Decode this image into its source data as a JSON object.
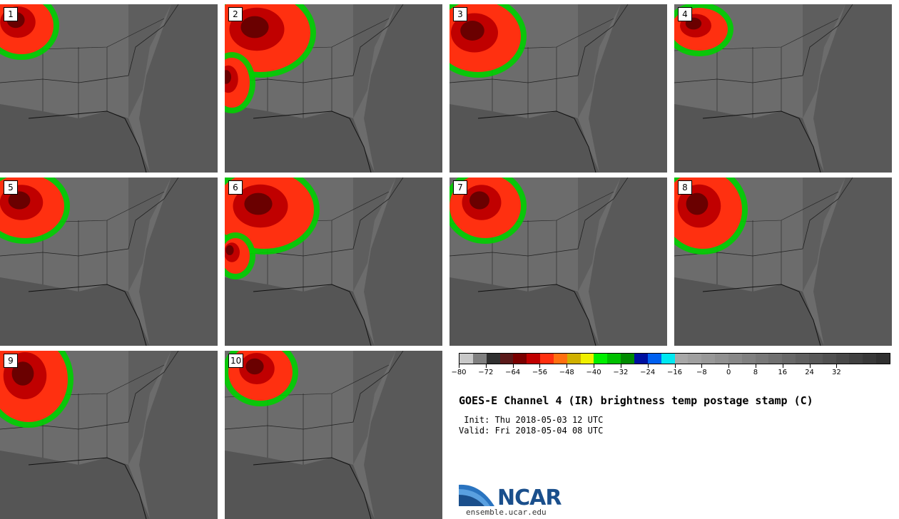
{
  "stamps": [
    {
      "label": "1"
    },
    {
      "label": "2"
    },
    {
      "label": "3"
    },
    {
      "label": "4"
    },
    {
      "label": "5"
    },
    {
      "label": "6"
    },
    {
      "label": "7"
    },
    {
      "label": "8"
    },
    {
      "label": "9"
    },
    {
      "label": "10"
    }
  ],
  "colorbar": {
    "colors": [
      "#c8c8c8",
      "#808080",
      "#303030",
      "#5a1a1a",
      "#7a0000",
      "#c00000",
      "#ff3010",
      "#ff7010",
      "#d0b000",
      "#f0f000",
      "#00f000",
      "#00c000",
      "#008a00",
      "#0010a0",
      "#0060f0",
      "#00e8f0",
      "#a8a8a8",
      "#a0a0a0",
      "#989898",
      "#909090",
      "#888888",
      "#808080",
      "#787878",
      "#707070",
      "#686868",
      "#606060",
      "#585858",
      "#505050",
      "#484848",
      "#404040",
      "#383838",
      "#303030"
    ],
    "tick_labels": [
      "−80",
      "−72",
      "−64",
      "−56",
      "−48",
      "−40",
      "−32",
      "−24",
      "−16",
      "−8",
      "0",
      "8",
      "16",
      "24",
      "32"
    ]
  },
  "title": "GOES-E Channel 4 (IR) brightness temp postage stamp (C)",
  "init": " Init: Thu 2018-05-03 12 UTC",
  "valid": "Valid: Fri 2018-05-04 08 UTC",
  "logo": {
    "text": "NCAR",
    "url": "ensemble.ucar.edu"
  }
}
